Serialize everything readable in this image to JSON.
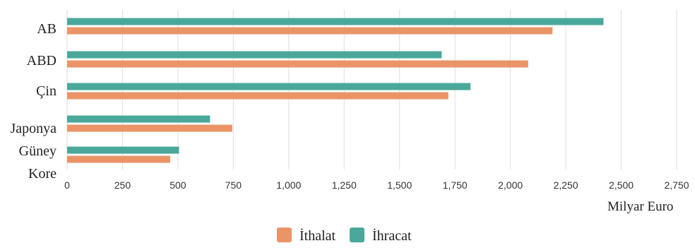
{
  "chart_data": {
    "type": "bar",
    "orientation": "horizontal",
    "categories": [
      "AB",
      "ABD",
      "Çin",
      "Japonya",
      "Güney Kore"
    ],
    "series": [
      {
        "name": "İhracat",
        "color": "#4aa89a",
        "values": [
          2420,
          1690,
          1820,
          645,
          505
        ]
      },
      {
        "name": "İthalat",
        "color": "#ea9467",
        "values": [
          2190,
          2080,
          1720,
          745,
          465
        ]
      }
    ],
    "legend_order": [
      "İthalat",
      "İhracat"
    ],
    "xlim": [
      0,
      2750
    ],
    "xticks": [
      0,
      250,
      500,
      750,
      1000,
      1250,
      1500,
      1750,
      2000,
      2250,
      2500,
      2750
    ],
    "xtick_labels": [
      "0",
      "250",
      "500",
      "750",
      "1,000",
      "1,250",
      "1,500",
      "1,750",
      "2,000",
      "2,250",
      "2,500",
      "2,750"
    ],
    "xlabel": "Milyar Euro",
    "grid": true,
    "legend_position": "bottom"
  }
}
